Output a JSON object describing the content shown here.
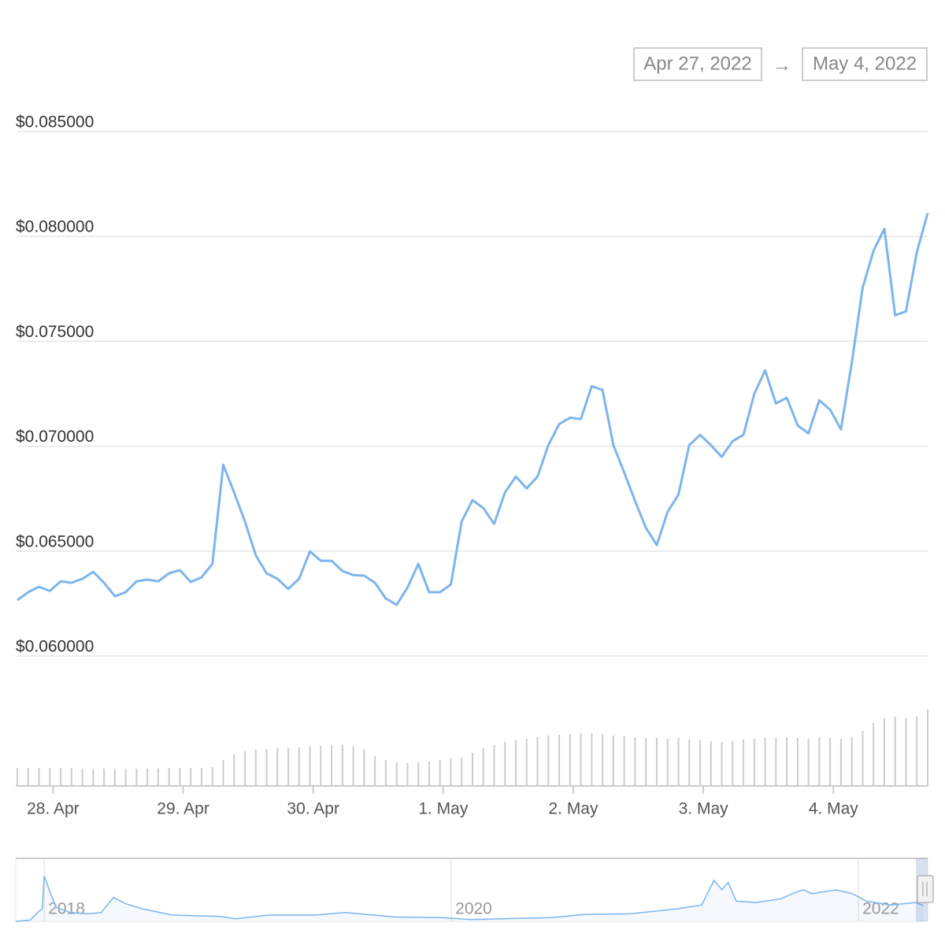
{
  "chart_data": {
    "type": "line",
    "range_from": "Apr 27, 2022",
    "range_arrow": "→",
    "range_to": "May 4, 2022",
    "color": "#7cb5ec",
    "grid": true,
    "xlim": [
      0,
      84
    ],
    "xticks": [
      {
        "value": 3.3,
        "label": "28. Apr"
      },
      {
        "value": 15.3,
        "label": "29. Apr"
      },
      {
        "value": 27.3,
        "label": "30. Apr"
      },
      {
        "value": 39.3,
        "label": "1. May"
      },
      {
        "value": 51.3,
        "label": "2. May"
      },
      {
        "value": 63.3,
        "label": "3. May"
      },
      {
        "value": 75.3,
        "label": "4. May"
      }
    ],
    "ylim": [
      0.06,
      0.085
    ],
    "yticks": [
      {
        "value": 0.06,
        "label": "$0.060000"
      },
      {
        "value": 0.065,
        "label": "$0.065000"
      },
      {
        "value": 0.07,
        "label": "$0.070000"
      },
      {
        "value": 0.075,
        "label": "$0.075000"
      },
      {
        "value": 0.08,
        "label": "$0.080000"
      },
      {
        "value": 0.085,
        "label": "$0.085000"
      }
    ],
    "values": [
      0.06266,
      0.06304,
      0.0633,
      0.0631,
      0.06356,
      0.06349,
      0.06368,
      0.06401,
      0.06349,
      0.06285,
      0.06304,
      0.06356,
      0.06364,
      0.06356,
      0.06394,
      0.06409,
      0.06353,
      0.06375,
      0.06439,
      0.06911,
      0.0678,
      0.06641,
      0.0648,
      0.06394,
      0.06368,
      0.0632,
      0.06368,
      0.06499,
      0.06454,
      0.06454,
      0.06405,
      0.06386,
      0.06383,
      0.06349,
      0.06274,
      0.06244,
      0.06326,
      0.06439,
      0.06304,
      0.06304,
      0.06341,
      0.06641,
      0.06743,
      0.06705,
      0.0663,
      0.0678,
      0.06855,
      0.06799,
      0.06855,
      0.07005,
      0.07106,
      0.07136,
      0.07129,
      0.07286,
      0.07268,
      0.07005,
      0.06874,
      0.06739,
      0.06611,
      0.06529,
      0.06686,
      0.06769,
      0.07005,
      0.07054,
      0.07005,
      0.06949,
      0.07024,
      0.07054,
      0.07249,
      0.07361,
      0.07204,
      0.07231,
      0.07099,
      0.07061,
      0.07219,
      0.07174,
      0.0708,
      0.07399,
      0.07755,
      0.07931,
      0.08036,
      0.07624,
      0.07643,
      0.07924,
      0.08111
    ],
    "volume": {
      "color": "#cccccc",
      "ylim": [
        0,
        100
      ],
      "values": [
        23,
        23,
        23,
        23,
        23,
        23,
        22,
        22,
        22,
        22,
        22,
        22,
        22,
        22,
        23,
        23,
        23,
        23,
        24,
        33,
        40,
        44,
        46,
        47,
        48,
        48,
        49,
        50,
        51,
        52,
        52,
        50,
        46,
        38,
        33,
        30,
        29,
        30,
        31,
        33,
        35,
        36,
        42,
        48,
        52,
        56,
        58,
        60,
        62,
        64,
        65,
        66,
        67,
        67,
        66,
        64,
        63,
        62,
        61,
        61,
        60,
        61,
        59,
        58,
        57,
        56,
        57,
        59,
        60,
        61,
        61,
        62,
        61,
        60,
        62,
        61,
        60,
        62,
        70,
        80,
        86,
        88,
        86,
        88,
        97
      ]
    },
    "navigator": {
      "color": "#7cb5ec",
      "xlim": [
        2017.86,
        2022.34
      ],
      "ylim": [
        0,
        100
      ],
      "xticks": [
        2018,
        2020,
        2022
      ],
      "x": [
        2017.86,
        2017.93,
        2017.97,
        2017.99,
        2018.0,
        2018.03,
        2018.06,
        2018.13,
        2018.21,
        2018.28,
        2018.34,
        2018.4,
        2018.48,
        2018.63,
        2018.86,
        2018.94,
        2019.1,
        2019.33,
        2019.48,
        2019.72,
        2019.95,
        2020.1,
        2020.49,
        2020.65,
        2020.88,
        2021.11,
        2021.23,
        2021.29,
        2021.33,
        2021.36,
        2021.4,
        2021.5,
        2021.62,
        2021.69,
        2021.73,
        2021.77,
        2021.89,
        2021.97,
        2022.04,
        2022.16,
        2022.28,
        2022.32
      ],
      "values": [
        0,
        2,
        15,
        20,
        72,
        45,
        22,
        14,
        12,
        14,
        38,
        28,
        20,
        10,
        8,
        4,
        10,
        10,
        14,
        7,
        6,
        3,
        6,
        11,
        12,
        20,
        26,
        65,
        50,
        62,
        32,
        30,
        36,
        46,
        50,
        44,
        50,
        44,
        32,
        26,
        30,
        25
      ]
    }
  }
}
